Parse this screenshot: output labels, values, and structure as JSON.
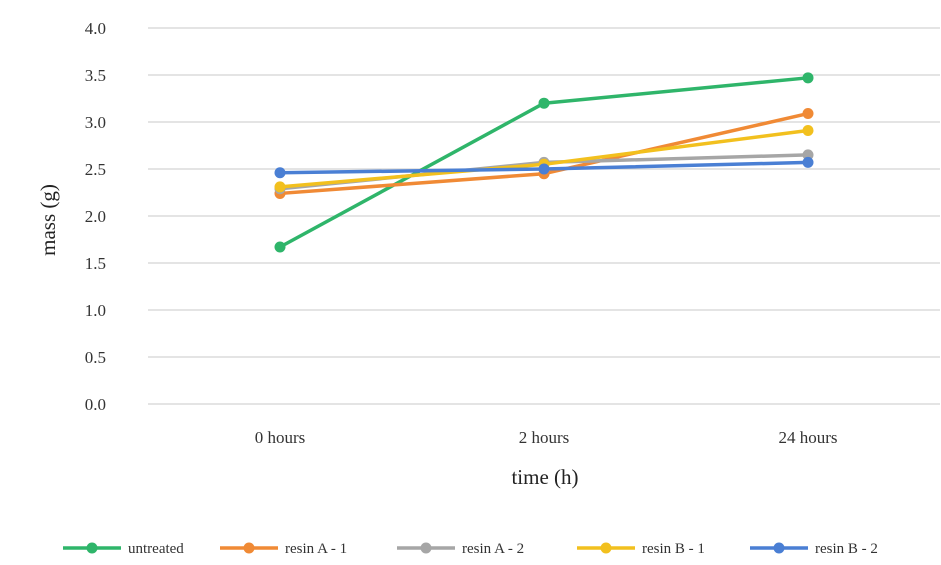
{
  "chart_data": {
    "type": "line",
    "categories": [
      "0 hours",
      "2 hours",
      "24 hours"
    ],
    "xlabel": "time (h)",
    "ylabel": "mass (g)",
    "ylim": [
      0,
      4.0
    ],
    "yticks": [
      "0.0",
      "0.5",
      "1.0",
      "1.5",
      "2.0",
      "2.5",
      "3.0",
      "3.5",
      "4.0"
    ],
    "grid": true,
    "legend_position": "bottom",
    "series": [
      {
        "name": "untreated",
        "color": "#2fb56a",
        "values": [
          1.67,
          3.2,
          3.47
        ]
      },
      {
        "name": "resin A - 1",
        "color": "#f08a35",
        "values": [
          2.24,
          2.45,
          3.09
        ]
      },
      {
        "name": "resin A - 2",
        "color": "#a6a6a6",
        "values": [
          2.29,
          2.57,
          2.65
        ]
      },
      {
        "name": "resin B - 1",
        "color": "#f2c01e",
        "values": [
          2.31,
          2.55,
          2.91
        ]
      },
      {
        "name": "resin B - 2",
        "color": "#4a7fd4",
        "values": [
          2.46,
          2.5,
          2.57
        ]
      }
    ]
  }
}
